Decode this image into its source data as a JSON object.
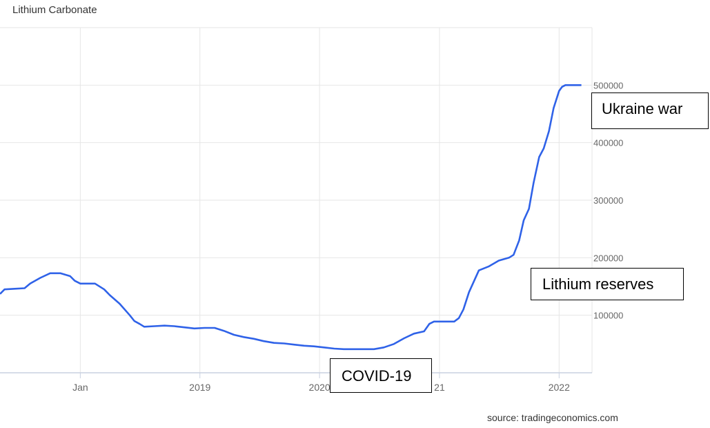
{
  "title": "Lithium Carbonate",
  "source": "source: tradingeconomics.com",
  "annotations": {
    "ukraine": "Ukraine war",
    "lithium": "Lithium reserves",
    "covid": "COVID-19"
  },
  "colors": {
    "line": "#2f62e8",
    "grid": "#e6e6e6",
    "axis": "#c8d0e0",
    "tick": "#666666"
  },
  "chart_data": {
    "type": "line",
    "title": "Lithium Carbonate",
    "xlabel": "",
    "ylabel": "",
    "ylim": [
      0,
      600000
    ],
    "xlim": [
      "2017-05-01",
      "2022-03-15"
    ],
    "grid": true,
    "y_ticks": [
      100000,
      200000,
      300000,
      400000,
      500000
    ],
    "y_tick_labels": [
      "100000",
      "200000",
      "300000",
      "400000",
      "500000"
    ],
    "x_ticks": [
      "2018-01-01",
      "2019-01-01",
      "2020-01-01",
      "2021-01-01",
      "2022-01-01"
    ],
    "x_tick_labels": [
      "Jan",
      "2019",
      "2020",
      "21",
      "2022"
    ],
    "series": [
      {
        "x": [
          "2017-05-01",
          "2017-05-15",
          "2017-06-15",
          "2017-07-15",
          "2017-08-01",
          "2017-09-01",
          "2017-10-01",
          "2017-11-01",
          "2017-12-01",
          "2017-12-15",
          "2018-01-01",
          "2018-01-15",
          "2018-02-15",
          "2018-03-15",
          "2018-04-01",
          "2018-05-01",
          "2018-06-01",
          "2018-06-15",
          "2018-07-01",
          "2018-07-15",
          "2018-08-15",
          "2018-09-15",
          "2018-10-15",
          "2018-11-15",
          "2018-12-15",
          "2019-01-15",
          "2019-02-15",
          "2019-03-15",
          "2019-04-15",
          "2019-05-15",
          "2019-06-15",
          "2019-07-15",
          "2019-08-15",
          "2019-09-15",
          "2019-10-15",
          "2019-11-15",
          "2019-12-15",
          "2020-01-15",
          "2020-02-15",
          "2020-03-15",
          "2020-04-15",
          "2020-05-15",
          "2020-06-15",
          "2020-07-15",
          "2020-08-15",
          "2020-09-15",
          "2020-10-15",
          "2020-11-15",
          "2020-12-01",
          "2020-12-15",
          "2021-01-01",
          "2021-01-15",
          "2021-02-01",
          "2021-02-15",
          "2021-03-01",
          "2021-03-15",
          "2021-04-01",
          "2021-05-01",
          "2021-06-01",
          "2021-07-01",
          "2021-08-01",
          "2021-08-15",
          "2021-09-01",
          "2021-09-15",
          "2021-10-01",
          "2021-10-15",
          "2021-11-01",
          "2021-11-15",
          "2021-12-01",
          "2021-12-15",
          "2022-01-01",
          "2022-01-10",
          "2022-01-20",
          "2022-02-01",
          "2022-02-10",
          "2022-02-20",
          "2022-03-01",
          "2022-03-10"
        ],
        "values": [
          137000,
          145000,
          146000,
          147000,
          155000,
          165000,
          173000,
          173000,
          168000,
          160000,
          155000,
          155000,
          155000,
          145000,
          135000,
          120000,
          100000,
          90000,
          85000,
          80000,
          81000,
          82000,
          81000,
          79000,
          77000,
          78000,
          78000,
          73000,
          66000,
          62000,
          59000,
          55000,
          52000,
          51000,
          49000,
          47000,
          46000,
          44000,
          42000,
          41000,
          41000,
          41000,
          41000,
          44000,
          50000,
          60000,
          68000,
          72000,
          85000,
          89000,
          89000,
          89000,
          89000,
          89000,
          95000,
          110000,
          140000,
          178000,
          185000,
          195000,
          200000,
          205000,
          230000,
          265000,
          285000,
          330000,
          375000,
          390000,
          420000,
          460000,
          490000,
          497000,
          500000,
          500000,
          500000,
          500000,
          500000,
          500000
        ]
      }
    ]
  }
}
